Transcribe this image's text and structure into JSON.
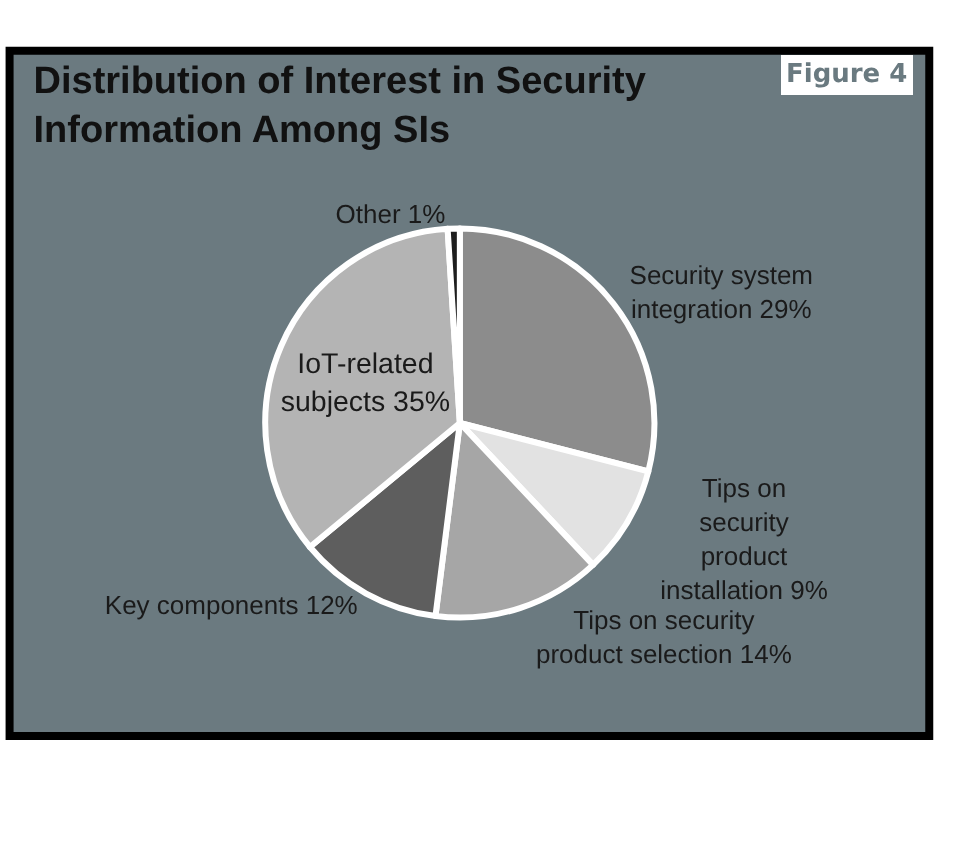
{
  "chart_data": {
    "type": "pie",
    "title": "Distribution of Interest in Security\nInformation Among SIs",
    "categories": [
      "Security system\nintegration",
      "Tips on\nsecurity\nproduct\ninstallation",
      "Tips on security\nproduct selection",
      "Key components",
      "IoT-related\nsubjects",
      "Other"
    ],
    "values": [
      29,
      9,
      14,
      12,
      35,
      1
    ],
    "colors": [
      "#8c8c8c",
      "#e2e2e2",
      "#a6a6a6",
      "#5e5e5e",
      "#b4b4b4",
      "#1e1e1e"
    ],
    "value_labels": [
      "29%",
      "9%",
      "14%",
      "12%",
      "35%",
      "1%"
    ],
    "annotations": [
      "Figure 4"
    ]
  }
}
